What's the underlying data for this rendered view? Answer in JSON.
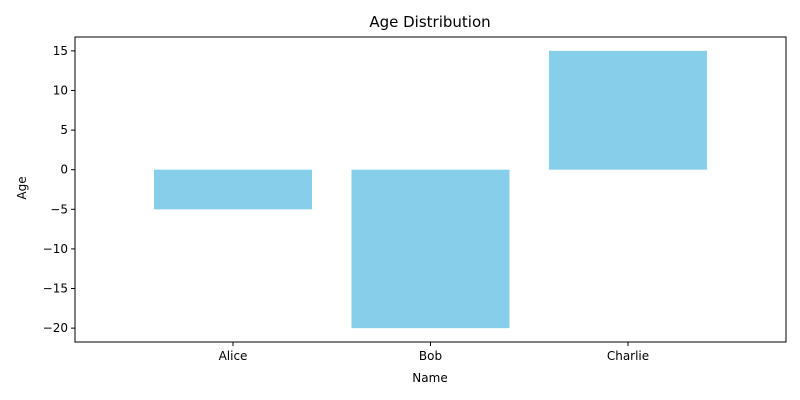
{
  "chart_data": {
    "type": "bar",
    "title": "Age Distribution",
    "xlabel": "Name",
    "ylabel": "Age",
    "categories": [
      "Alice",
      "Bob",
      "Charlie"
    ],
    "values": [
      -5,
      -20,
      15
    ],
    "ylim": [
      -21.75,
      16.75
    ],
    "yticks": [
      -20,
      -15,
      -10,
      -5,
      0,
      5,
      10,
      15
    ],
    "ytick_labels": [
      "−20",
      "−15",
      "−10",
      "−5",
      "0",
      "5",
      "10",
      "15"
    ],
    "bar_color": "#87ceeb",
    "grid": false,
    "legend": "none"
  }
}
